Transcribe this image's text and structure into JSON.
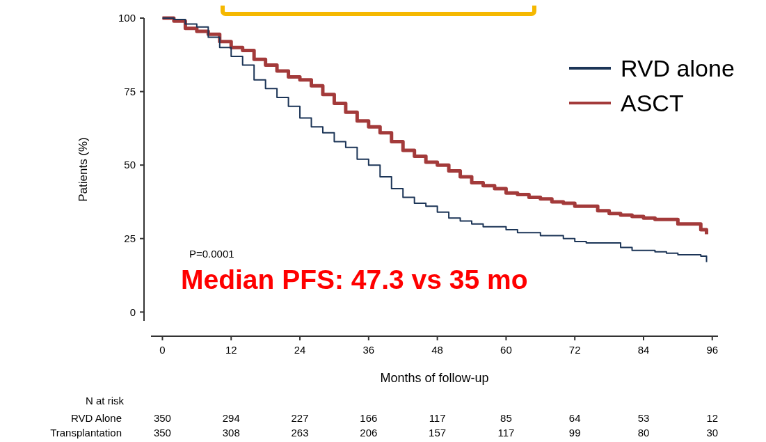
{
  "chart_data": {
    "type": "step",
    "ylabel": "Patients (%)",
    "xlabel": "Months of follow-up",
    "xlim": [
      -2,
      97
    ],
    "xticks": [
      0,
      12,
      24,
      36,
      48,
      60,
      72,
      84,
      96
    ],
    "ylim": [
      -3,
      100
    ],
    "yticks": [
      0,
      25,
      50,
      75,
      100
    ],
    "legend": "top right",
    "grid": false,
    "series": [
      {
        "name": "RVD alone",
        "color": "#1c3557",
        "x": [
          0,
          2,
          4,
          6,
          8,
          10,
          12,
          14,
          16,
          18,
          20,
          22,
          24,
          26,
          28,
          30,
          32,
          34,
          36,
          38,
          40,
          42,
          44,
          46,
          48,
          50,
          52,
          54,
          56,
          58,
          60,
          62,
          64,
          66,
          68,
          70,
          72,
          74,
          76,
          78,
          80,
          82,
          84,
          86,
          88,
          90,
          92,
          94,
          95
        ],
        "values": [
          100,
          99.5,
          98,
          97,
          93.5,
          90,
          87,
          84,
          79,
          76,
          73,
          70,
          66,
          63,
          61,
          58,
          56,
          52,
          50,
          46,
          42,
          39,
          37,
          36,
          34,
          32,
          31,
          30,
          29,
          29,
          28,
          27,
          27,
          26,
          26,
          25,
          24,
          23.5,
          23.5,
          23.5,
          22,
          21,
          21,
          20.5,
          20,
          19.5,
          19.5,
          19,
          17
        ]
      },
      {
        "name": "ASCT",
        "color": "#a33a3a",
        "x": [
          0,
          2,
          4,
          6,
          8,
          10,
          12,
          14,
          16,
          18,
          20,
          22,
          24,
          26,
          28,
          30,
          32,
          34,
          36,
          38,
          40,
          42,
          44,
          46,
          48,
          50,
          52,
          54,
          56,
          58,
          60,
          62,
          64,
          66,
          68,
          70,
          72,
          74,
          76,
          78,
          80,
          82,
          84,
          86,
          88,
          90,
          92,
          94,
          95
        ],
        "values": [
          100,
          99,
          96.5,
          95.5,
          94.5,
          92,
          90,
          89,
          86,
          84,
          82,
          80,
          79,
          77,
          74,
          71,
          68,
          65,
          63,
          61,
          58,
          55,
          53,
          51,
          50,
          48,
          46,
          44,
          43,
          42,
          40.5,
          40,
          39,
          38.5,
          37.5,
          37,
          36,
          36,
          34.5,
          33.5,
          33,
          32.5,
          32,
          31.5,
          31.5,
          30,
          30,
          28,
          26.5
        ]
      }
    ],
    "annotations": [
      "P=0.0001",
      "Median PFS: 47.3 vs 35 mo",
      "N at risk",
      "RVD Alone",
      "350",
      "294",
      "227",
      "166",
      "117",
      "85",
      "64",
      "53",
      "12",
      "Transplantation",
      "350",
      "308",
      "263",
      "206",
      "157",
      "117",
      "99",
      "80",
      "30"
    ]
  }
}
